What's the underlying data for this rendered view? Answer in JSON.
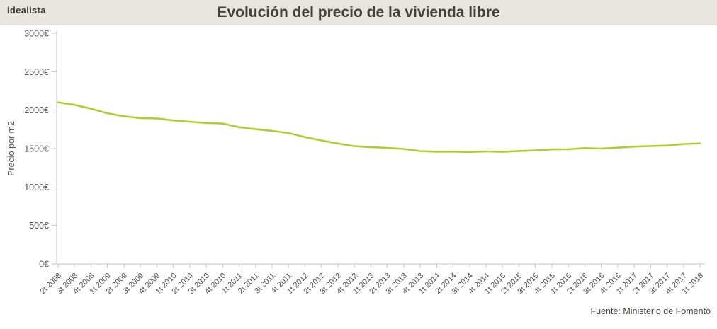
{
  "header": {
    "logo": "idealista",
    "title": "Evolución del precio de la vivienda libre"
  },
  "footer": {
    "source": "Fuente: Ministerio de Fomento"
  },
  "colors": {
    "background": "#ffffff",
    "header_bg": "#e8e5e1",
    "title_text": "#44403d",
    "axis_text": "#514e56",
    "axis_line": "#c9c6c3",
    "line": "#b3cc33",
    "source_text": "#45413e"
  },
  "chart_data": {
    "type": "line",
    "title": "Evolución del precio de la vivienda libre",
    "xlabel": "",
    "ylabel": "Precio por m2",
    "ylim": [
      0,
      3000
    ],
    "y_ticks": [
      0,
      500,
      1000,
      1500,
      2000,
      2500,
      3000
    ],
    "y_tick_suffix": "€",
    "grid": false,
    "legend": false,
    "line_color": "#b3cc33",
    "categories": [
      "2t 2008",
      "3t 2008",
      "4t 2008",
      "1t 2009",
      "2t 2009",
      "3t 2009",
      "4t 2009",
      "1t 2010",
      "2t 2010",
      "3t 2010",
      "4t 2010",
      "1t 2011",
      "2t 2011",
      "3t 2011",
      "4t 2011",
      "1t 2012",
      "2t 2012",
      "3t 2012",
      "4t 2012",
      "1t 2013",
      "2t 2013",
      "3t 2013",
      "4t 2013",
      "1t 2014",
      "2t 2014",
      "3t 2014",
      "4t 2014",
      "1t 2015",
      "2t 2015",
      "3t 2015",
      "4t 2015",
      "1t 2016",
      "2t 2016",
      "3t 2016",
      "4t 2016",
      "1t 2017",
      "2t 2017",
      "3t 2017",
      "4t 2017",
      "1t 2018"
    ],
    "values": [
      2101,
      2069,
      2019,
      1958,
      1921,
      1897,
      1892,
      1866,
      1849,
      1833,
      1826,
      1778,
      1752,
      1730,
      1702,
      1649,
      1606,
      1566,
      1531,
      1519,
      1508,
      1495,
      1467,
      1459,
      1460,
      1456,
      1463,
      1458,
      1469,
      1476,
      1490,
      1492,
      1506,
      1500,
      1512,
      1526,
      1533,
      1540,
      1559,
      1567
    ]
  }
}
